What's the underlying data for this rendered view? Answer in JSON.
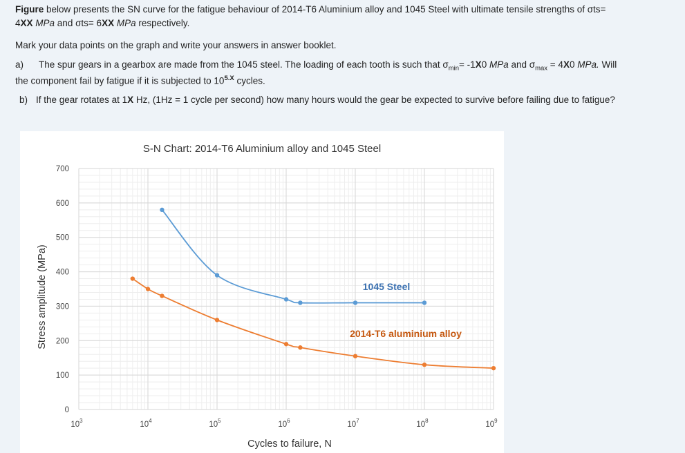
{
  "question": {
    "intro_bold": "Figure",
    "intro_rest": " below presents the SN curve for the fatigue behaviour of 2014-T6 Aluminium alloy and 1045 Steel with ultimate tensile strengths of σts=",
    "line2_a": "4",
    "line2_b": "XX",
    "line2_c": " MPa",
    "line2_d": " and  σts= 6",
    "line2_e": "XX",
    "line2_f": " MPa",
    "line2_g": " respectively.",
    "mark": "Mark your data points on the graph and write your answers in answer booklet.",
    "a_label": "a)",
    "a_text1": "The spur gears in a gearbox are made from the 1045 steel. The loading of each tooth is such that σ",
    "a_min_sub": "min",
    "a_text2": "= -1",
    "a_x0_1": "X",
    "a_text3": "0 ",
    "a_mpa1": "MPa",
    "a_text4": " and σ",
    "a_max_sub": "max",
    "a_text5": " = 4",
    "a_x0_2": "X",
    "a_text6": "0 ",
    "a_mpa2": "MPa.",
    "a_text7": " Will",
    "a2_text1": "the component fail by fatigue if it is subjected to 10",
    "a2_sup": "5.X",
    "a2_text2": " cycles.",
    "b_label": "b)",
    "b_text1": "If the gear rotates at 1",
    "b_bold": "X",
    "b_text2": " Hz, (1Hz = 1 cycle per second) how many hours would the gear be expected to survive before failing due to fatigue?"
  },
  "chart_data": {
    "type": "line",
    "title": "S-N Chart: 2014-T6 Aluminium alloy and 1045 Steel",
    "xlabel": "Cycles to failure, N",
    "ylabel": "Stress amplitude (MPa)",
    "x_scale": "log",
    "xlim": [
      1000,
      1000000000
    ],
    "ylim": [
      0,
      700
    ],
    "x_ticks": [
      {
        "value": 1000,
        "base": "10",
        "exp": "3"
      },
      {
        "value": 10000,
        "base": "10",
        "exp": "4"
      },
      {
        "value": 100000,
        "base": "10",
        "exp": "5"
      },
      {
        "value": 1000000,
        "base": "10",
        "exp": "6"
      },
      {
        "value": 10000000,
        "base": "10",
        "exp": "7"
      },
      {
        "value": 100000000,
        "base": "10",
        "exp": "8"
      },
      {
        "value": 1000000000,
        "base": "10",
        "exp": "9"
      }
    ],
    "y_ticks": [
      "0",
      "100",
      "200",
      "300",
      "400",
      "500",
      "600",
      "700"
    ],
    "grid": true,
    "series": [
      {
        "name": "1045 Steel",
        "color": "#5b9bd5",
        "x": [
          16000,
          100000,
          1000000,
          1600000,
          10000000,
          100000000
        ],
        "y": [
          580,
          390,
          320,
          310,
          310,
          310
        ]
      },
      {
        "name": "2014-T6 aluminium alloy",
        "color": "#ed7d31",
        "x": [
          6000,
          10000,
          16000,
          100000,
          1000000,
          1600000,
          10000000,
          100000000,
          1000000000
        ],
        "y": [
          380,
          350,
          330,
          260,
          190,
          180,
          155,
          130,
          120
        ]
      }
    ]
  }
}
